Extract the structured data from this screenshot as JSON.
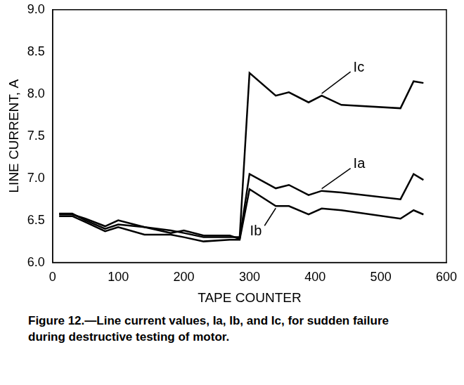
{
  "chart_data": {
    "type": "line",
    "title": "Figure 12.—Line current values, Ia, Ib, and Ic, for sudden failure during destructive testing of motor.",
    "x_label": "TAPE COUNTER",
    "y_label": "LINE CURRENT, A",
    "x": [
      10,
      30,
      50,
      80,
      100,
      140,
      180,
      200,
      230,
      270,
      285,
      300,
      340,
      360,
      390,
      410,
      440,
      530,
      550,
      565
    ],
    "series": [
      {
        "name": "Ic",
        "color": "#000000",
        "values": [
          6.57,
          6.57,
          6.52,
          6.43,
          6.5,
          6.42,
          6.38,
          6.35,
          6.3,
          6.3,
          6.3,
          8.25,
          7.98,
          8.02,
          7.9,
          7.98,
          7.87,
          7.83,
          8.15,
          8.13
        ]
      },
      {
        "name": "Ia",
        "color": "#000000",
        "values": [
          6.58,
          6.58,
          6.5,
          6.4,
          6.45,
          6.42,
          6.35,
          6.38,
          6.32,
          6.32,
          6.28,
          7.05,
          6.88,
          6.92,
          6.8,
          6.85,
          6.83,
          6.75,
          7.05,
          6.98
        ]
      },
      {
        "name": "Ib",
        "color": "#000000",
        "values": [
          6.55,
          6.55,
          6.48,
          6.37,
          6.42,
          6.33,
          6.33,
          6.3,
          6.25,
          6.27,
          6.27,
          6.87,
          6.67,
          6.67,
          6.57,
          6.64,
          6.62,
          6.52,
          6.62,
          6.57
        ]
      }
    ],
    "xlim": [
      0,
      600
    ],
    "xticks": [
      0,
      100,
      200,
      300,
      400,
      500,
      600
    ],
    "ylim": [
      6,
      9
    ],
    "yticks": [
      {
        "value": 6,
        "label": "6.0"
      },
      6.5,
      {
        "value": 7,
        "label": "7.0"
      },
      7.5,
      {
        "value": 8,
        "label": "8.0"
      },
      8.5,
      {
        "value": 9,
        "label": "9.0"
      }
    ],
    "grid": false
  }
}
